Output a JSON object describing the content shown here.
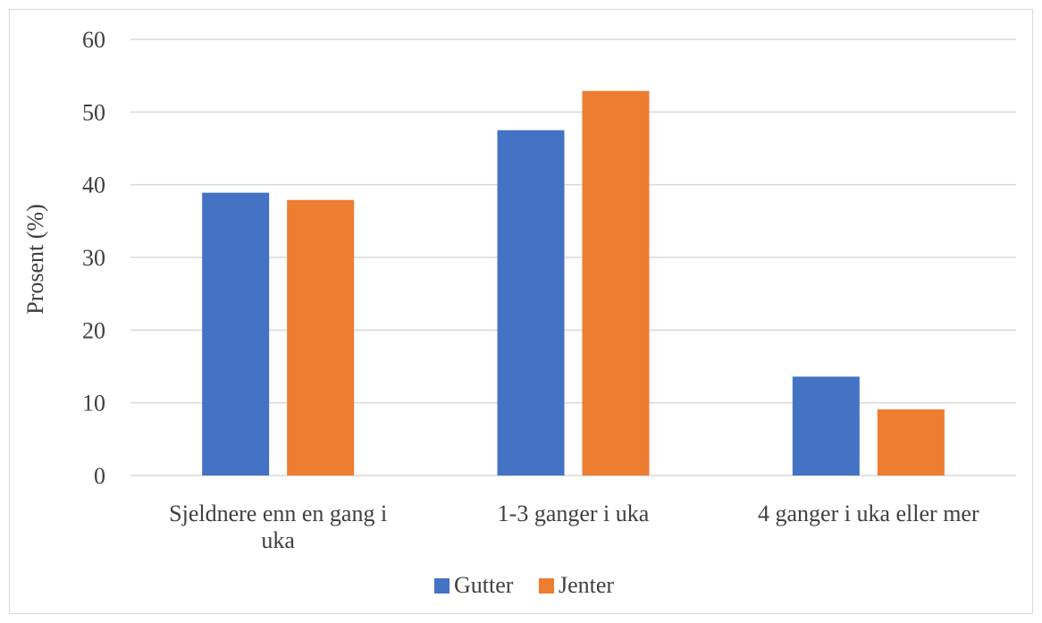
{
  "chart_data": {
    "type": "bar",
    "title": "",
    "xlabel": "",
    "ylabel": "Prosent (%)",
    "ylim": [
      0,
      60
    ],
    "yticks": [
      0,
      10,
      20,
      30,
      40,
      50,
      60
    ],
    "grid": true,
    "legend_position": "bottom",
    "categories": [
      [
        "Sjeldnere enn en gang i",
        "uka"
      ],
      [
        "1-3 ganger i uka"
      ],
      [
        "4 ganger i uka eller mer"
      ]
    ],
    "series": [
      {
        "name": "Gutter",
        "color": "#4472c4",
        "values": [
          38.9,
          47.5,
          13.6
        ]
      },
      {
        "name": "Jenter",
        "color": "#ed7d31",
        "values": [
          37.9,
          52.9,
          9.1
        ]
      }
    ]
  }
}
